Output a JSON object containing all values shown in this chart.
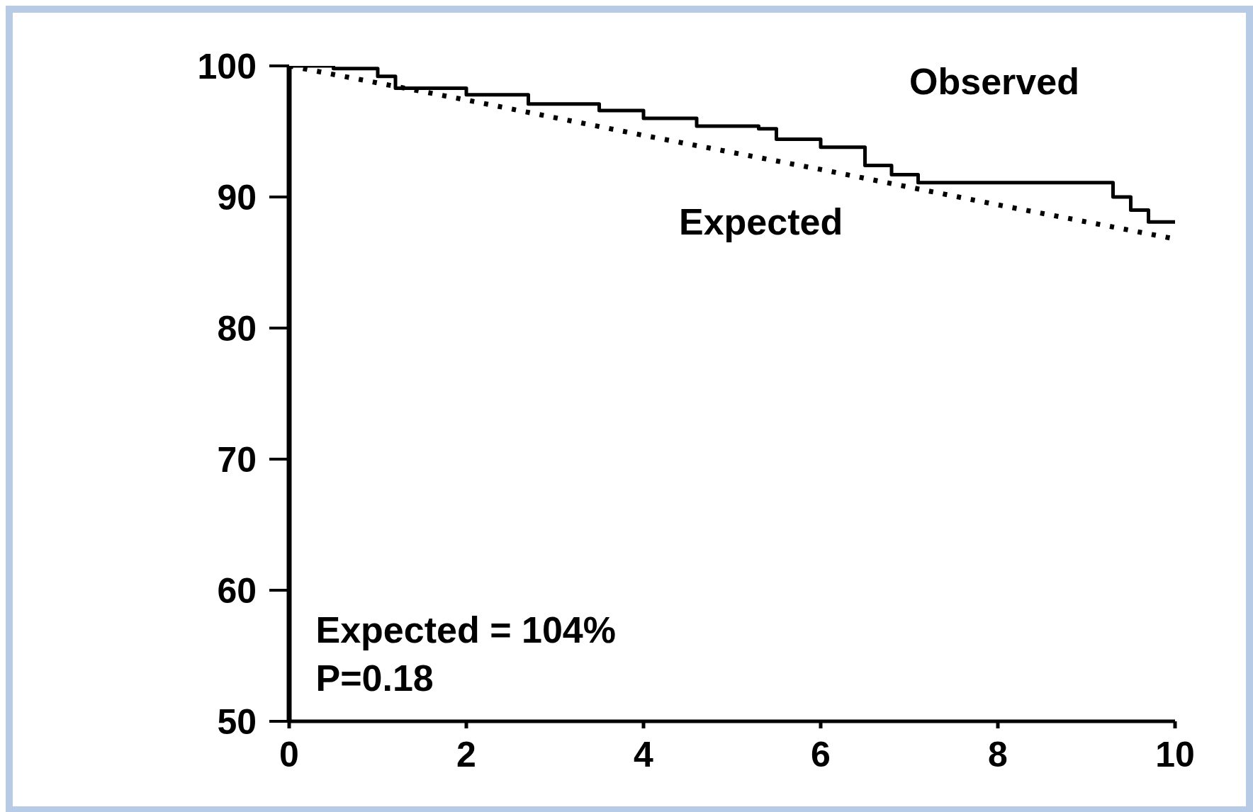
{
  "chart_data": {
    "type": "line",
    "xlim": [
      0,
      10
    ],
    "ylim": [
      50,
      100
    ],
    "xticks": [
      0,
      2,
      4,
      6,
      8,
      10
    ],
    "yticks": [
      50,
      60,
      70,
      80,
      90,
      100
    ],
    "series": [
      {
        "name": "Observed",
        "type": "step",
        "color": "#000000",
        "line_style": "solid",
        "x": [
          0,
          0.5,
          1.0,
          1.2,
          2.0,
          2.7,
          3.5,
          4.0,
          4.6,
          5.3,
          5.5,
          6.0,
          6.5,
          6.8,
          7.1,
          9.3,
          9.5,
          9.7,
          10
        ],
        "values": [
          100,
          99.8,
          99.2,
          98.3,
          97.8,
          97.1,
          96.6,
          96.0,
          95.4,
          95.2,
          94.4,
          93.8,
          92.4,
          91.7,
          91.1,
          90.0,
          89.0,
          88.1,
          88.1
        ]
      },
      {
        "name": "Expected",
        "type": "line",
        "color": "#000000",
        "line_style": "dotted",
        "x": [
          0,
          2,
          4,
          6,
          8,
          10
        ],
        "values": [
          100,
          97.4,
          94.7,
          92.1,
          89.4,
          86.8
        ]
      }
    ],
    "annotations": [
      "Expected = 104%",
      "P=0.18"
    ]
  }
}
